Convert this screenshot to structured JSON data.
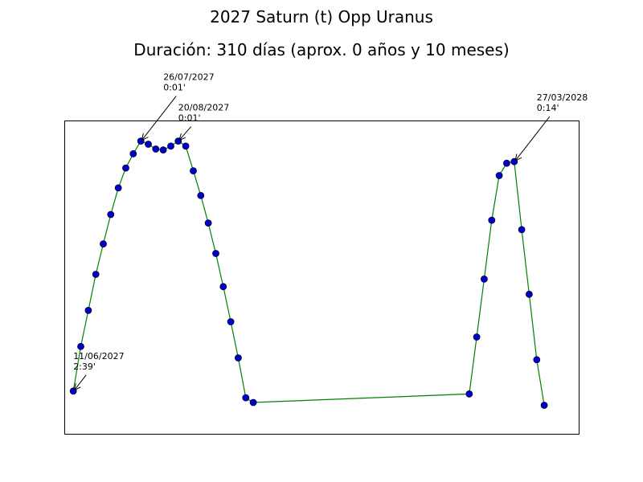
{
  "chart_data": {
    "type": "line",
    "title": "2027 Saturn (t) Opp Uranus",
    "subtitle": "Duración: 310 días (aprox. 0 años y 10 meses)",
    "xlabel": "",
    "ylabel": "",
    "axes_visible": false,
    "grid": false,
    "line_color": "#008000",
    "marker_face_color": "#0000cc",
    "marker_edge_color": "#000033",
    "xlim": [
      -6,
      337
    ],
    "ylim": [
      -0.2,
      3.1
    ],
    "series": [
      {
        "x": [
          0,
          5,
          10,
          15,
          20,
          25,
          30,
          35,
          40,
          45,
          50,
          55,
          60,
          65,
          70,
          75,
          80,
          85,
          90,
          95,
          100,
          105,
          110,
          115,
          120,
          125,
          130,
          135,
          140,
          145,
          150,
          155,
          160,
          165,
          170,
          175,
          180,
          185,
          190,
          195,
          200,
          205,
          210,
          215,
          220,
          225,
          230,
          235,
          240,
          245,
          250,
          255,
          260,
          265,
          270,
          275,
          280,
          285,
          290,
          295,
          300,
          305,
          310
        ],
        "y": [
          2.65,
          2.18,
          1.8,
          1.42,
          1.1,
          0.79,
          0.51,
          0.3,
          0.15,
          0.017,
          0.1,
          0.25,
          0.2,
          0.017,
          0.13,
          0.33,
          0.59,
          0.88,
          1.2,
          1.55,
          1.92,
          2.3,
          2.72,
          null,
          null,
          null,
          null,
          null,
          null,
          null,
          null,
          null,
          null,
          null,
          null,
          null,
          null,
          null,
          null,
          null,
          null,
          null,
          null,
          null,
          null,
          null,
          null,
          null,
          null,
          null,
          null,
          null,
          null,
          null,
          null,
          null,
          null,
          null,
          null,
          null,
          null,
          null,
          null
        ]
      }
    ],
    "points": [
      {
        "x": 0,
        "y": 2.65
      },
      {
        "x": 5,
        "y": 2.18
      },
      {
        "x": 10,
        "y": 1.8
      },
      {
        "x": 15,
        "y": 1.42
      },
      {
        "x": 20,
        "y": 1.1
      },
      {
        "x": 25,
        "y": 0.79
      },
      {
        "x": 30,
        "y": 0.51
      },
      {
        "x": 35,
        "y": 0.3
      },
      {
        "x": 40,
        "y": 0.15
      },
      {
        "x": 45,
        "y": 0.017
      },
      {
        "x": 50,
        "y": 0.05
      },
      {
        "x": 55,
        "y": 0.1
      },
      {
        "x": 60,
        "y": 0.11
      },
      {
        "x": 65,
        "y": 0.07
      },
      {
        "x": 70,
        "y": 0.017
      },
      {
        "x": 75,
        "y": 0.07
      },
      {
        "x": 80,
        "y": 0.33
      },
      {
        "x": 85,
        "y": 0.59
      },
      {
        "x": 90,
        "y": 0.88
      },
      {
        "x": 95,
        "y": 1.2
      },
      {
        "x": 100,
        "y": 1.55
      },
      {
        "x": 105,
        "y": 1.92
      },
      {
        "x": 110,
        "y": 2.3
      },
      {
        "x": 115,
        "y": 2.72
      },
      {
        "x": 120,
        "y": 2.77
      },
      {
        "x": 264,
        "y": 2.68
      },
      {
        "x": 269,
        "y": 2.08
      },
      {
        "x": 274,
        "y": 1.47
      },
      {
        "x": 279,
        "y": 0.85
      },
      {
        "x": 284,
        "y": 0.38
      },
      {
        "x": 289,
        "y": 0.25
      },
      {
        "x": 294,
        "y": 0.233
      },
      {
        "x": 299,
        "y": 0.95
      },
      {
        "x": 304,
        "y": 1.63
      },
      {
        "x": 309,
        "y": 2.32
      },
      {
        "x": 314,
        "y": 2.8
      }
    ],
    "annotations": [
      {
        "date": "11/06/2027",
        "value": "2:39'",
        "x": 0,
        "y": 2.65,
        "text_pos": "above-right"
      },
      {
        "date": "26/07/2027",
        "value": "0:01'",
        "x": 45,
        "y": 0.017,
        "text_pos": "above-right"
      },
      {
        "date": "20/08/2027",
        "value": "0:01'",
        "x": 70,
        "y": 0.017,
        "text_pos": "above-right"
      },
      {
        "date": "27/03/2028",
        "value": "0:14'",
        "x": 294,
        "y": 0.233,
        "text_pos": "above-right"
      }
    ]
  }
}
